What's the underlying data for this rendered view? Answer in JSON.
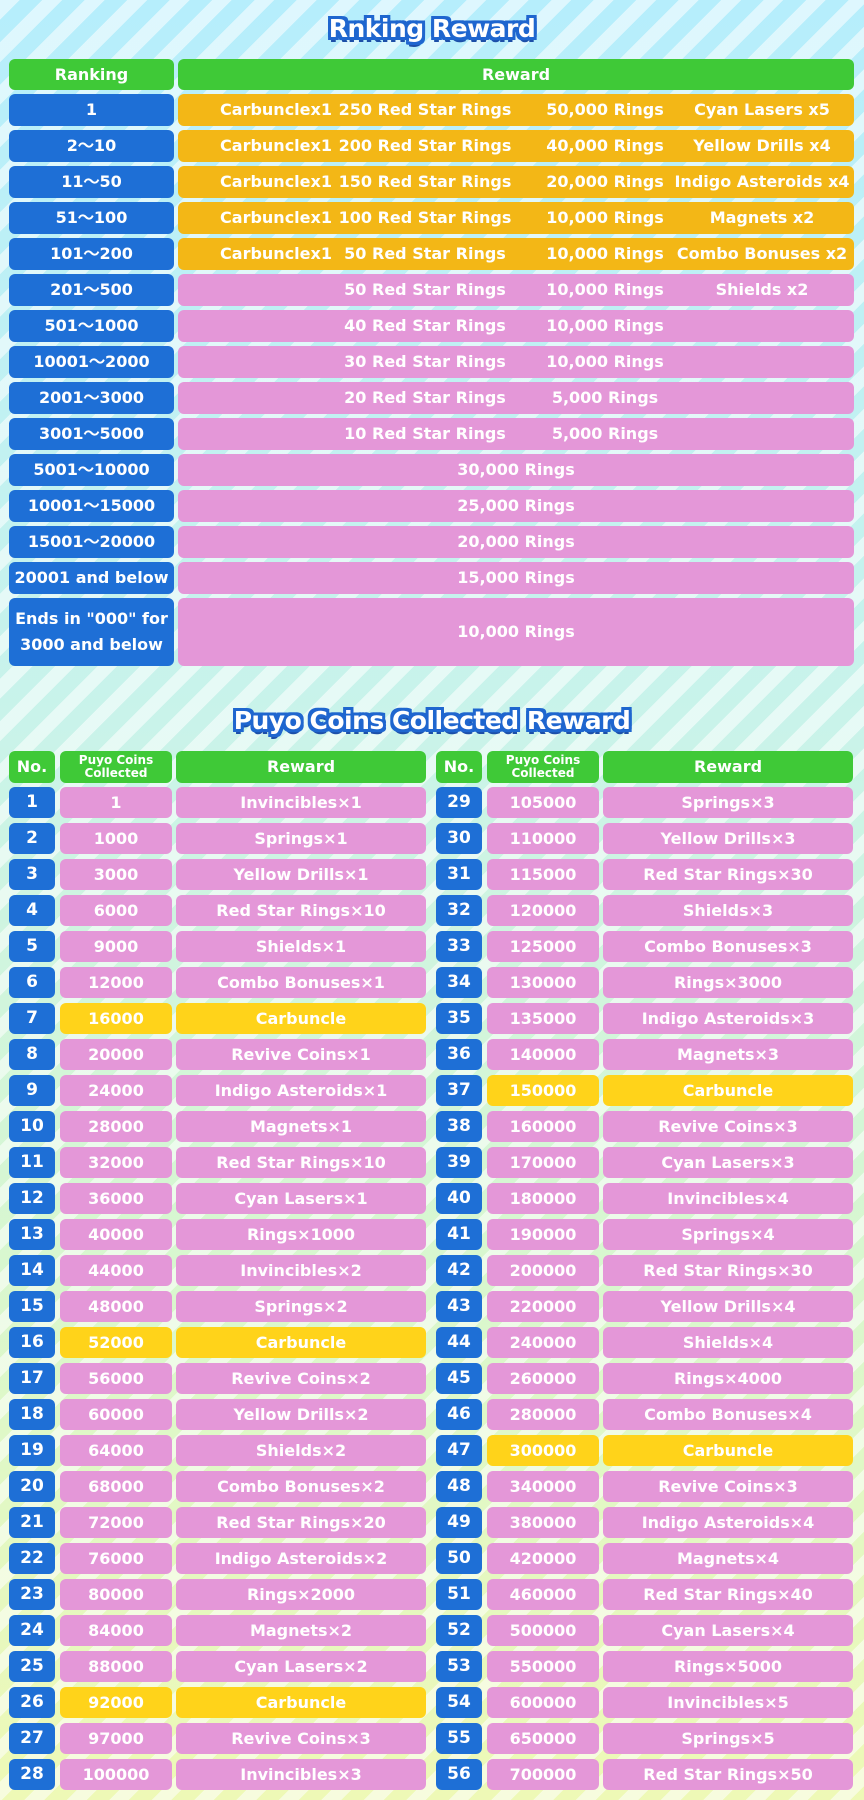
{
  "ranking_title": "Rnking Reward",
  "ranking_headers": {
    "ranking": "Ranking",
    "reward": "Reward"
  },
  "ranking_rows": [
    {
      "rank": "1",
      "items": [
        "Carbunclex1",
        "250 Red Star Rings",
        "50,000 Rings",
        "Cyan Lasers x5"
      ],
      "style": "gold"
    },
    {
      "rank": "2～10",
      "items": [
        "Carbunclex1",
        "200 Red Star Rings",
        "40,000 Rings",
        "Yellow Drills x4"
      ],
      "style": "gold"
    },
    {
      "rank": "11～50",
      "items": [
        "Carbunclex1",
        "150 Red Star Rings",
        "20,000 Rings",
        "Indigo Asteroids x4"
      ],
      "style": "gold"
    },
    {
      "rank": "51～100",
      "items": [
        "Carbunclex1",
        "100 Red Star Rings",
        "10,000 Rings",
        "Magnets x2"
      ],
      "style": "gold"
    },
    {
      "rank": "101～200",
      "items": [
        "Carbunclex1",
        "50 Red Star Rings",
        "10,000 Rings",
        "Combo Bonuses x2"
      ],
      "style": "gold"
    },
    {
      "rank": "201～500",
      "items": [
        "",
        "50 Red Star Rings",
        "10,000 Rings",
        "Shields x2"
      ],
      "style": "pink"
    },
    {
      "rank": "501～1000",
      "items": [
        "",
        "40 Red Star Rings",
        "10,000 Rings",
        ""
      ],
      "style": "pink"
    },
    {
      "rank": "10001～2000",
      "items": [
        "",
        "30 Red Star Rings",
        "10,000 Rings",
        ""
      ],
      "style": "pink"
    },
    {
      "rank": "2001～3000",
      "items": [
        "",
        "20 Red Star Rings",
        "5,000 Rings",
        ""
      ],
      "style": "pink"
    },
    {
      "rank": "3001～5000",
      "items": [
        "",
        "10 Red Star Rings",
        "5,000 Rings",
        ""
      ],
      "style": "pink"
    },
    {
      "rank": "5001～10000",
      "single": "30,000 Rings",
      "style": "pink"
    },
    {
      "rank": "10001～15000",
      "single": "25,000 Rings",
      "style": "pink"
    },
    {
      "rank": "15001～20000",
      "single": "20,000 Rings",
      "style": "pink"
    },
    {
      "rank": "20001 and below",
      "single": "15,000 Rings",
      "style": "pink"
    },
    {
      "rank": "Ends in \"000\" for 3000 and below",
      "single": "10,000 Rings",
      "style": "pink"
    }
  ],
  "puyo_title": "Puyo Coins Collected Reward",
  "puyo_headers": {
    "no": "No.",
    "coins": "Puyo Coins Collected",
    "reward": "Reward"
  },
  "puyo_rows": [
    {
      "no": "1",
      "coins": "1",
      "reward": "Invincibles×1"
    },
    {
      "no": "2",
      "coins": "1000",
      "reward": "Springs×1"
    },
    {
      "no": "3",
      "coins": "3000",
      "reward": "Yellow Drills×1"
    },
    {
      "no": "4",
      "coins": "6000",
      "reward": "Red Star Rings×10"
    },
    {
      "no": "5",
      "coins": "9000",
      "reward": "Shields×1"
    },
    {
      "no": "6",
      "coins": "12000",
      "reward": "Combo Bonuses×1"
    },
    {
      "no": "7",
      "coins": "16000",
      "reward": "Carbuncle",
      "highlight": true
    },
    {
      "no": "8",
      "coins": "20000",
      "reward": "Revive Coins×1"
    },
    {
      "no": "9",
      "coins": "24000",
      "reward": "Indigo Asteroids×1"
    },
    {
      "no": "10",
      "coins": "28000",
      "reward": "Magnets×1"
    },
    {
      "no": "11",
      "coins": "32000",
      "reward": "Red Star Rings×10"
    },
    {
      "no": "12",
      "coins": "36000",
      "reward": "Cyan Lasers×1"
    },
    {
      "no": "13",
      "coins": "40000",
      "reward": "Rings×1000"
    },
    {
      "no": "14",
      "coins": "44000",
      "reward": "Invincibles×2"
    },
    {
      "no": "15",
      "coins": "48000",
      "reward": "Springs×2"
    },
    {
      "no": "16",
      "coins": "52000",
      "reward": "Carbuncle",
      "highlight": true
    },
    {
      "no": "17",
      "coins": "56000",
      "reward": "Revive Coins×2"
    },
    {
      "no": "18",
      "coins": "60000",
      "reward": "Yellow Drills×2"
    },
    {
      "no": "19",
      "coins": "64000",
      "reward": "Shields×2"
    },
    {
      "no": "20",
      "coins": "68000",
      "reward": "Combo Bonuses×2"
    },
    {
      "no": "21",
      "coins": "72000",
      "reward": "Red Star Rings×20"
    },
    {
      "no": "22",
      "coins": "76000",
      "reward": "Indigo Asteroids×2"
    },
    {
      "no": "23",
      "coins": "80000",
      "reward": "Rings×2000"
    },
    {
      "no": "24",
      "coins": "84000",
      "reward": "Magnets×2"
    },
    {
      "no": "25",
      "coins": "88000",
      "reward": "Cyan Lasers×2"
    },
    {
      "no": "26",
      "coins": "92000",
      "reward": "Carbuncle",
      "highlight": true
    },
    {
      "no": "27",
      "coins": "97000",
      "reward": "Revive Coins×3"
    },
    {
      "no": "28",
      "coins": "100000",
      "reward": "Invincibles×3"
    },
    {
      "no": "29",
      "coins": "105000",
      "reward": "Springs×3"
    },
    {
      "no": "30",
      "coins": "110000",
      "reward": "Yellow Drills×3"
    },
    {
      "no": "31",
      "coins": "115000",
      "reward": "Red Star Rings×30"
    },
    {
      "no": "32",
      "coins": "120000",
      "reward": "Shields×3"
    },
    {
      "no": "33",
      "coins": "125000",
      "reward": "Combo Bonuses×3"
    },
    {
      "no": "34",
      "coins": "130000",
      "reward": "Rings×3000"
    },
    {
      "no": "35",
      "coins": "135000",
      "reward": "Indigo Asteroids×3"
    },
    {
      "no": "36",
      "coins": "140000",
      "reward": "Magnets×3"
    },
    {
      "no": "37",
      "coins": "150000",
      "reward": "Carbuncle",
      "highlight": true
    },
    {
      "no": "38",
      "coins": "160000",
      "reward": "Revive Coins×3"
    },
    {
      "no": "39",
      "coins": "170000",
      "reward": "Cyan Lasers×3"
    },
    {
      "no": "40",
      "coins": "180000",
      "reward": "Invincibles×4"
    },
    {
      "no": "41",
      "coins": "190000",
      "reward": "Springs×4"
    },
    {
      "no": "42",
      "coins": "200000",
      "reward": "Red Star Rings×30"
    },
    {
      "no": "43",
      "coins": "220000",
      "reward": "Yellow Drills×4"
    },
    {
      "no": "44",
      "coins": "240000",
      "reward": "Shields×4"
    },
    {
      "no": "45",
      "coins": "260000",
      "reward": "Rings×4000"
    },
    {
      "no": "46",
      "coins": "280000",
      "reward": "Combo Bonuses×4"
    },
    {
      "no": "47",
      "coins": "300000",
      "reward": "Carbuncle",
      "highlight": true
    },
    {
      "no": "48",
      "coins": "340000",
      "reward": "Revive Coins×3"
    },
    {
      "no": "49",
      "coins": "380000",
      "reward": "Indigo Asteroids×4"
    },
    {
      "no": "50",
      "coins": "420000",
      "reward": "Magnets×4"
    },
    {
      "no": "51",
      "coins": "460000",
      "reward": "Red Star Rings×40"
    },
    {
      "no": "52",
      "coins": "500000",
      "reward": "Cyan Lasers×4"
    },
    {
      "no": "53",
      "coins": "550000",
      "reward": "Rings×5000"
    },
    {
      "no": "54",
      "coins": "600000",
      "reward": "Invincibles×5"
    },
    {
      "no": "55",
      "coins": "650000",
      "reward": "Springs×5"
    },
    {
      "no": "56",
      "coins": "700000",
      "reward": "Red Star Rings×50"
    }
  ]
}
